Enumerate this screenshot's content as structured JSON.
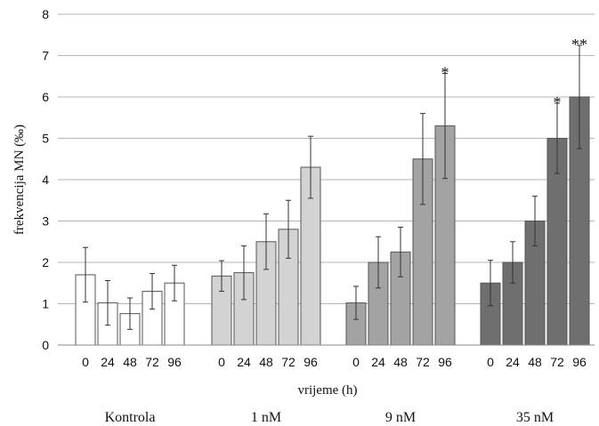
{
  "chart_data": {
    "type": "bar",
    "xlabel": "vrijeme (h)",
    "ylabel": "frekvencija MN (‰)",
    "ylim": [
      0,
      8
    ],
    "yticks": [
      "0",
      "1",
      "2",
      "3",
      "4",
      "5",
      "6",
      "7",
      "8"
    ],
    "grid": true,
    "groups": [
      {
        "name": "Kontrola",
        "color": "#ffffff",
        "categories": [
          "0",
          "24",
          "48",
          "72",
          "96"
        ],
        "values": [
          1.7,
          1.02,
          0.76,
          1.3,
          1.5
        ],
        "errors": [
          0.66,
          0.54,
          0.38,
          0.43,
          0.43
        ],
        "annotations": [
          "",
          "",
          "",
          "",
          ""
        ]
      },
      {
        "name": "1 nM",
        "color": "#d3d3d3",
        "categories": [
          "0",
          "24",
          "48",
          "72",
          "96"
        ],
        "values": [
          1.67,
          1.75,
          2.5,
          2.8,
          4.3
        ],
        "errors": [
          0.37,
          0.65,
          0.67,
          0.7,
          0.75
        ],
        "annotations": [
          "",
          "",
          "",
          "",
          ""
        ]
      },
      {
        "name": "9 nM",
        "color": "#a3a3a3",
        "categories": [
          "0",
          "24",
          "48",
          "72",
          "96"
        ],
        "values": [
          1.02,
          2.0,
          2.25,
          4.5,
          5.3
        ],
        "errors": [
          0.4,
          0.62,
          0.6,
          1.1,
          1.27
        ],
        "annotations": [
          "",
          "",
          "",
          "",
          "*"
        ]
      },
      {
        "name": "35 nM",
        "color": "#6f6f6f",
        "categories": [
          "0",
          "24",
          "48",
          "72",
          "96"
        ],
        "values": [
          1.5,
          2.0,
          3.0,
          5.0,
          6.0
        ],
        "errors": [
          0.55,
          0.5,
          0.6,
          0.85,
          1.25
        ],
        "annotations": [
          "",
          "",
          "",
          "*",
          "**"
        ]
      }
    ]
  }
}
